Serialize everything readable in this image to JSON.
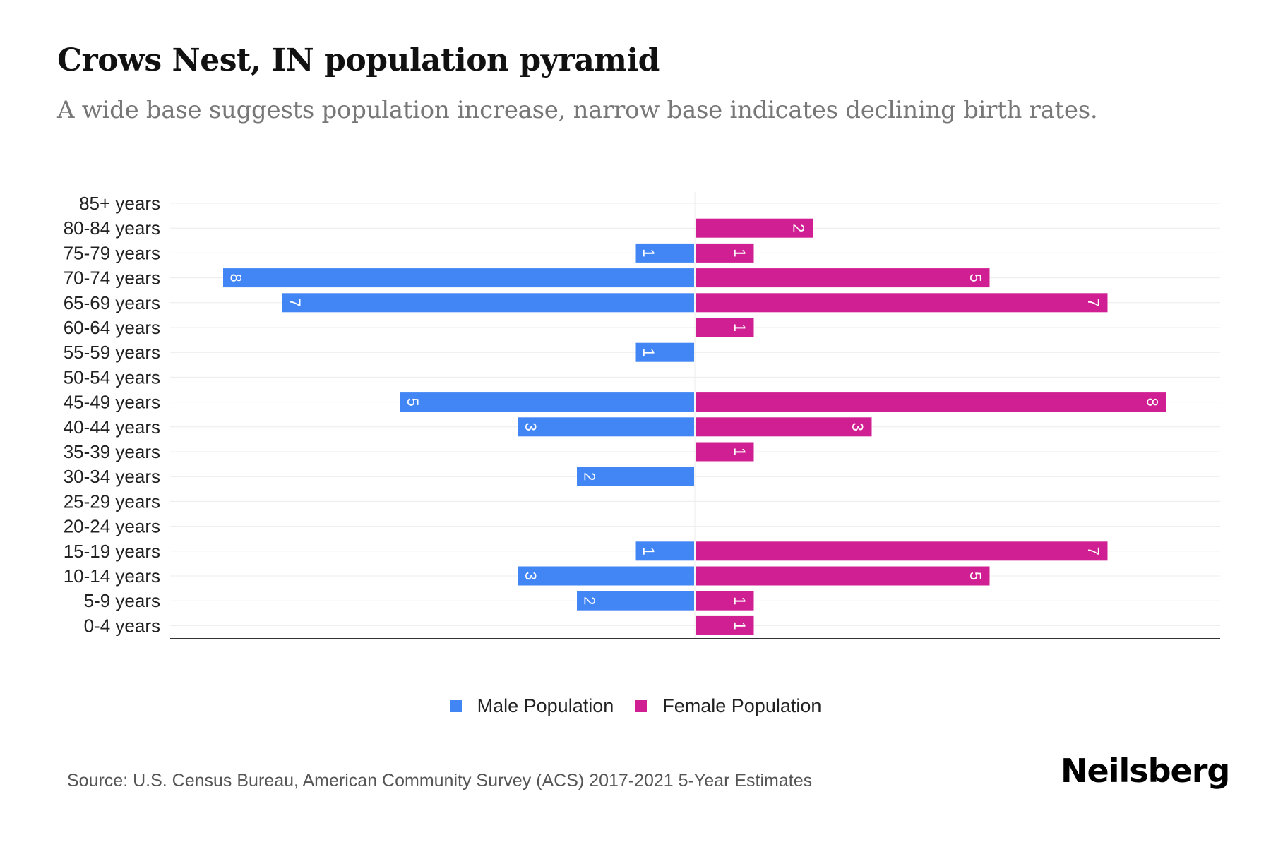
{
  "title": "Crows Nest, IN population pyramid",
  "subtitle": "A wide base suggests population increase, narrow base indicates declining birth rates.",
  "source": "Source: U.S. Census Bureau, American Community Survey (ACS) 2017-2021 5-Year Estimates",
  "logo": "Neilsberg",
  "colors": {
    "male": "#4285f4",
    "female": "#cf1f92"
  },
  "chart_data": {
    "type": "bar",
    "orientation": "horizontal-pyramid",
    "title": "Crows Nest, IN population pyramid",
    "xlabel": "",
    "ylabel": "",
    "xlim": [
      -9,
      7.7
    ],
    "grid": true,
    "legend_position": "bottom",
    "categories": [
      "85+ years",
      "80-84 years",
      "75-79 years",
      "70-74 years",
      "65-69 years",
      "60-64 years",
      "55-59 years",
      "50-54 years",
      "45-49 years",
      "40-44 years",
      "35-39 years",
      "30-34 years",
      "25-29 years",
      "20-24 years",
      "15-19 years",
      "10-14 years",
      "5-9 years",
      "0-4 years"
    ],
    "series": [
      {
        "name": "Male Population",
        "values": [
          0,
          0,
          1,
          8,
          7,
          0,
          1,
          0,
          5,
          3,
          0,
          2,
          0,
          0,
          1,
          3,
          2,
          0
        ]
      },
      {
        "name": "Female Population",
        "values": [
          0,
          2,
          1,
          5,
          7,
          1,
          0,
          0,
          8,
          3,
          1,
          0,
          0,
          0,
          7,
          5,
          1,
          1
        ]
      }
    ]
  }
}
